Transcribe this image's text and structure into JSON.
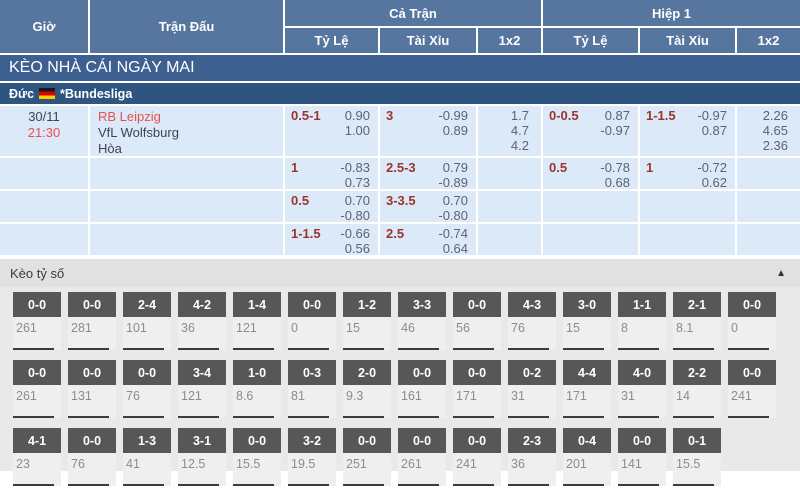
{
  "header": {
    "col_time": "Giờ",
    "col_match": "Trận Đấu",
    "group_full": "Cả Trận",
    "group_half": "Hiệp 1",
    "sub_odds": "Tỷ Lệ",
    "sub_ou": "Tài Xỉu",
    "sub_1x2_full": "1x2",
    "sub_1x2_half": "1x2"
  },
  "banner": {
    "title": "KÈO NHÀ CÁI NGÀY MAI"
  },
  "league": {
    "country": "Đức",
    "name": "*Bundesliga"
  },
  "match": {
    "date": "30/11",
    "time": "21:30",
    "home": "RB Leipzig",
    "away": "VfL Wolfsburg",
    "draw": "Hòa"
  },
  "odds_rows": [
    {
      "ft_hdp": {
        "line": "0.5-1",
        "o1": "0.90",
        "o2": "1.00"
      },
      "ft_ou": {
        "line": "3",
        "o1": "-0.99",
        "o2": "0.89"
      },
      "ft_1x2": {
        "h": "1.7",
        "d": "4.7",
        "a": "4.2"
      },
      "h1_hdp": {
        "line": "0-0.5",
        "o1": "0.87",
        "o2": "-0.97"
      },
      "h1_ou": {
        "line": "1-1.5",
        "o1": "-0.97",
        "o2": "0.87"
      },
      "h1_1x2": {
        "h": "2.26",
        "d": "4.65",
        "a": "2.36"
      }
    },
    {
      "ft_hdp": {
        "line": "1",
        "o1": "-0.83",
        "o2": "0.73"
      },
      "ft_ou": {
        "line": "2.5-3",
        "o1": "0.79",
        "o2": "-0.89"
      },
      "h1_hdp": {
        "line": "0.5",
        "o1": "-0.78",
        "o2": "0.68"
      },
      "h1_ou": {
        "line": "1",
        "o1": "-0.72",
        "o2": "0.62"
      }
    },
    {
      "ft_hdp": {
        "line": "0.5",
        "o1": "0.70",
        "o2": "-0.80"
      },
      "ft_ou": {
        "line": "3-3.5",
        "o1": "0.70",
        "o2": "-0.80"
      }
    },
    {
      "ft_hdp": {
        "line": "1-1.5",
        "o1": "-0.66",
        "o2": "0.56"
      },
      "ft_ou": {
        "line": "2.5",
        "o1": "-0.74",
        "o2": "0.64"
      }
    }
  ],
  "score_section": {
    "title": "Kèo tỷ số",
    "collapse_icon": "▲",
    "rows": [
      [
        {
          "s": "0-0",
          "v": "261"
        },
        {
          "s": "0-0",
          "v": "281"
        },
        {
          "s": "2-4",
          "v": "101"
        },
        {
          "s": "4-2",
          "v": "36"
        },
        {
          "s": "1-4",
          "v": "121"
        },
        {
          "s": "0-0",
          "v": "0"
        },
        {
          "s": "1-2",
          "v": "15"
        },
        {
          "s": "3-3",
          "v": "46"
        },
        {
          "s": "0-0",
          "v": "56"
        },
        {
          "s": "4-3",
          "v": "76"
        },
        {
          "s": "3-0",
          "v": "15"
        },
        {
          "s": "1-1",
          "v": "8"
        },
        {
          "s": "2-1",
          "v": "8.1"
        },
        {
          "s": "0-0",
          "v": "0"
        }
      ],
      [
        {
          "s": "0-0",
          "v": "261"
        },
        {
          "s": "0-0",
          "v": "131"
        },
        {
          "s": "0-0",
          "v": "76"
        },
        {
          "s": "3-4",
          "v": "121"
        },
        {
          "s": "1-0",
          "v": "8.6"
        },
        {
          "s": "0-3",
          "v": "81"
        },
        {
          "s": "2-0",
          "v": "9.3"
        },
        {
          "s": "0-0",
          "v": "161"
        },
        {
          "s": "0-0",
          "v": "171"
        },
        {
          "s": "0-2",
          "v": "31"
        },
        {
          "s": "4-4",
          "v": "171"
        },
        {
          "s": "4-0",
          "v": "31"
        },
        {
          "s": "2-2",
          "v": "14"
        },
        {
          "s": "0-0",
          "v": "241"
        }
      ],
      [
        {
          "s": "4-1",
          "v": "23"
        },
        {
          "s": "0-0",
          "v": "76"
        },
        {
          "s": "1-3",
          "v": "41"
        },
        {
          "s": "3-1",
          "v": "12.5"
        },
        {
          "s": "0-0",
          "v": "15.5"
        },
        {
          "s": "3-2",
          "v": "19.5"
        },
        {
          "s": "0-0",
          "v": "251"
        },
        {
          "s": "0-0",
          "v": "261"
        },
        {
          "s": "0-0",
          "v": "241"
        },
        {
          "s": "2-3",
          "v": "36"
        },
        {
          "s": "0-4",
          "v": "201"
        },
        {
          "s": "0-0",
          "v": "141"
        },
        {
          "s": "0-1",
          "v": "15.5"
        }
      ]
    ]
  },
  "colors": {
    "header_bg": "#56759f",
    "banner_bg": "#3d6090",
    "league_bg": "#2e5480",
    "row_bg": "#dce9f9",
    "handicap_red": "#9e332d",
    "accent_red": "#e8504e",
    "score_head_bg": "#575757"
  }
}
